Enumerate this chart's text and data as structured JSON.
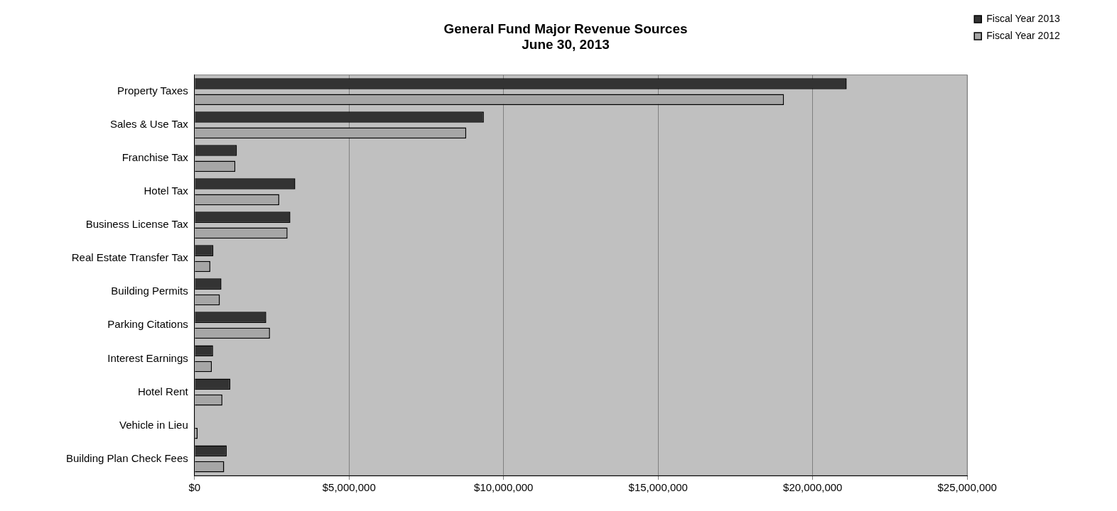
{
  "chart_data": {
    "type": "bar",
    "orientation": "horizontal",
    "title": "General Fund Major Revenue Sources",
    "subtitle": "June 30, 2013",
    "categories": [
      "Property Taxes",
      "Sales & Use Tax",
      "Franchise Tax",
      "Hotel Tax",
      "Business License Tax",
      "Real Estate Transfer Tax",
      "Building Permits",
      "Parking Citations",
      "Interest Earnings",
      "Hotel Rent",
      "Vehicle in Lieu",
      "Building Plan Check Fees"
    ],
    "series": [
      {
        "name": "Fiscal Year 2013",
        "color": "#333333",
        "values": [
          21100000,
          9360000,
          1370000,
          3260000,
          3100000,
          610000,
          870000,
          2320000,
          600000,
          1160000,
          null,
          1040000
        ]
      },
      {
        "name": "Fiscal Year 2012",
        "color": "#a6a6a6",
        "values": [
          19070000,
          8790000,
          1320000,
          2740000,
          3010000,
          510000,
          820000,
          2440000,
          560000,
          900000,
          100000,
          960000
        ]
      }
    ],
    "xlim": [
      0,
      25000000
    ],
    "xticks": [
      {
        "value": 0,
        "label": "$0"
      },
      {
        "value": 5000000,
        "label": "$5,000,000"
      },
      {
        "value": 10000000,
        "label": "$10,000,000"
      },
      {
        "value": 15000000,
        "label": "$15,000,000"
      },
      {
        "value": 20000000,
        "label": "$20,000,000"
      },
      {
        "value": 25000000,
        "label": "$25,000,000"
      }
    ],
    "grid": "x",
    "legend": "top right"
  }
}
